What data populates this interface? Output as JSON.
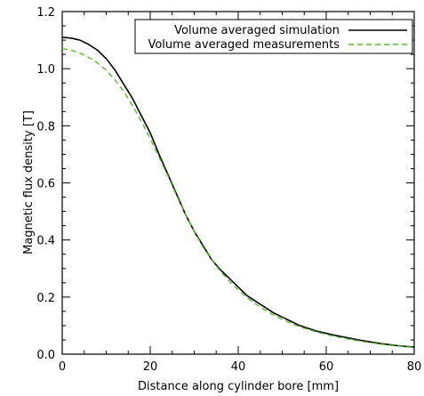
{
  "chart_data": {
    "type": "line",
    "xlabel": "Distance along cylinder bore [mm]",
    "ylabel": "Magnetic flux density [T]",
    "xlim": [
      0,
      80
    ],
    "ylim": [
      0,
      1.2
    ],
    "x_ticks": [
      0,
      20,
      40,
      60,
      80
    ],
    "x_tick_labels": [
      "0",
      "20",
      "40",
      "60",
      "80"
    ],
    "y_ticks": [
      0,
      0.2,
      0.4,
      0.6,
      0.8,
      1.0,
      1.2
    ],
    "y_tick_labels": [
      "0.0",
      "0.2",
      "0.4",
      "0.6",
      "0.8",
      "1.0",
      "1.2"
    ],
    "grid": false,
    "legend_position": "top-right",
    "series": [
      {
        "name": "Volume averaged simulation",
        "color": "#000000",
        "dash": "solid",
        "x": [
          0,
          2,
          4,
          6,
          8,
          10,
          12,
          14,
          16,
          18,
          20,
          22,
          24,
          26,
          28,
          30,
          32,
          34,
          36,
          38,
          40,
          42,
          44,
          46,
          48,
          50,
          52,
          54,
          56,
          58,
          60,
          62,
          64,
          66,
          68,
          70,
          72,
          74,
          76,
          78,
          80
        ],
        "y": [
          1.11,
          1.107,
          1.1,
          1.085,
          1.065,
          1.035,
          0.995,
          0.945,
          0.895,
          0.835,
          0.775,
          0.7,
          0.63,
          0.56,
          0.49,
          0.43,
          0.38,
          0.33,
          0.295,
          0.265,
          0.235,
          0.205,
          0.185,
          0.165,
          0.145,
          0.13,
          0.115,
          0.1,
          0.09,
          0.08,
          0.073,
          0.066,
          0.06,
          0.054,
          0.048,
          0.043,
          0.038,
          0.034,
          0.03,
          0.027,
          0.025
        ]
      },
      {
        "name": "Volume averaged measurements",
        "color": "#5cb832",
        "dash": "dashed",
        "x": [
          0,
          2,
          4,
          6,
          8,
          10,
          12,
          14,
          16,
          18,
          20,
          22,
          24,
          26,
          28,
          30,
          32,
          34,
          36,
          38,
          40,
          42,
          44,
          46,
          48,
          50,
          52,
          54,
          56,
          58,
          60,
          62,
          64,
          66,
          68,
          70,
          72,
          74,
          76,
          78,
          80
        ],
        "y": [
          1.07,
          1.065,
          1.055,
          1.04,
          1.02,
          0.995,
          0.96,
          0.92,
          0.87,
          0.815,
          0.755,
          0.69,
          0.625,
          0.555,
          0.49,
          0.43,
          0.375,
          0.33,
          0.29,
          0.255,
          0.225,
          0.198,
          0.175,
          0.155,
          0.138,
          0.122,
          0.108,
          0.096,
          0.086,
          0.077,
          0.069,
          0.062,
          0.056,
          0.05,
          0.045,
          0.04,
          0.036,
          0.032,
          0.029,
          0.026,
          0.024
        ]
      }
    ]
  }
}
